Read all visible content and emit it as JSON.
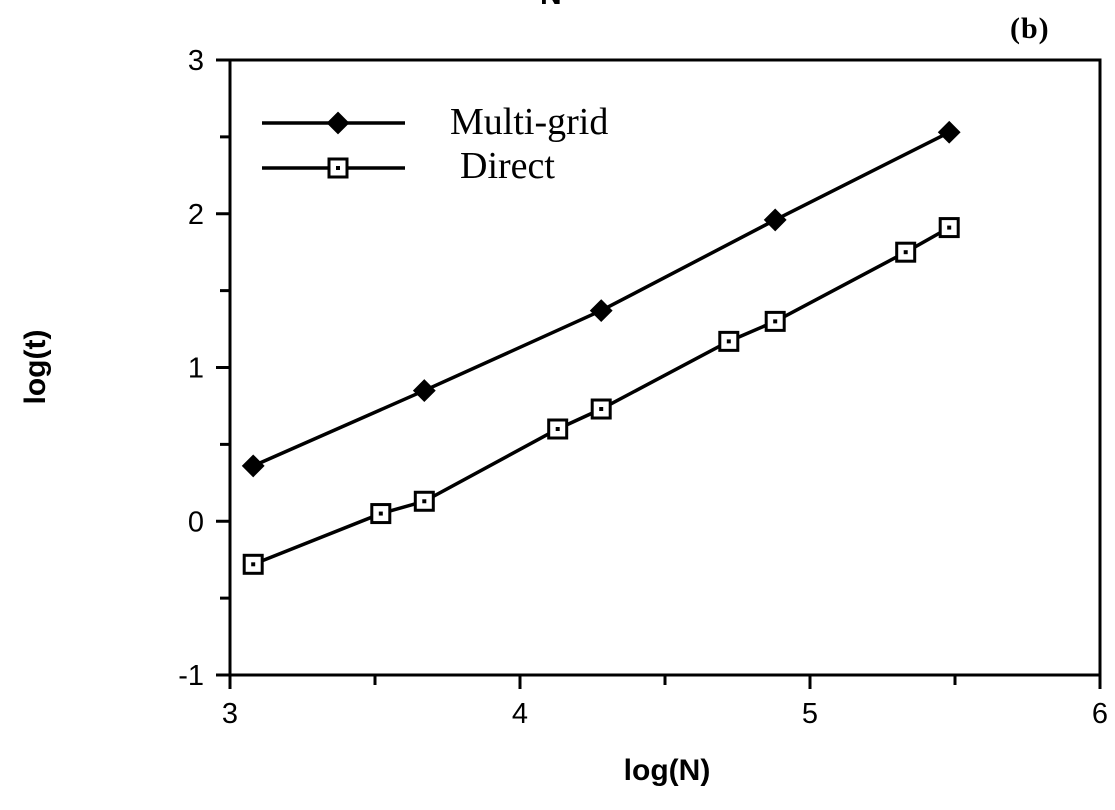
{
  "header": {
    "top_letter": "N",
    "panel_label": "(b)"
  },
  "chart_data": {
    "type": "line",
    "xlabel": "log(N)",
    "ylabel": "log(t)",
    "xlim": [
      3,
      6
    ],
    "ylim": [
      -1,
      3
    ],
    "xticks": [
      "3",
      "4",
      "5",
      "6"
    ],
    "yticks": [
      "-1",
      "0",
      "1",
      "2",
      "3"
    ],
    "grid": false,
    "legend_position": "top-left",
    "series": [
      {
        "name": "Multi-grid",
        "marker": "filled-diamond",
        "color": "#000000",
        "x": [
          3.08,
          3.67,
          4.28,
          4.88,
          5.48
        ],
        "y": [
          0.36,
          0.85,
          1.37,
          1.96,
          2.53
        ]
      },
      {
        "name": "Direct",
        "marker": "open-square",
        "color": "#000000",
        "x": [
          3.08,
          3.52,
          3.67,
          4.13,
          4.28,
          4.72,
          4.88,
          5.33,
          5.48
        ],
        "y": [
          -0.28,
          0.05,
          0.13,
          0.6,
          0.73,
          1.17,
          1.3,
          1.75,
          1.91
        ]
      }
    ]
  }
}
